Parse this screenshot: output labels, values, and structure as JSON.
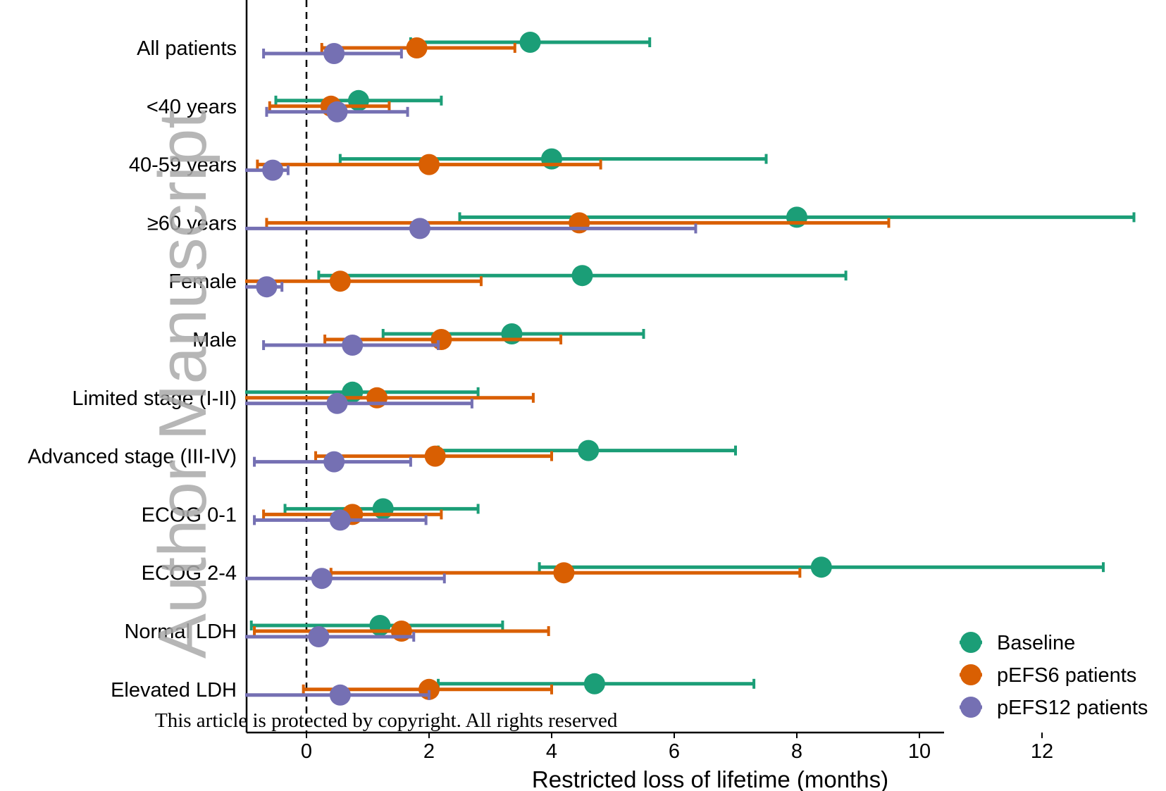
{
  "chart_data": {
    "type": "forest",
    "xlabel": "Restricted loss of lifetime (months)",
    "xlim": [
      -1.0,
      13.8
    ],
    "xticks": [
      0,
      2,
      4,
      6,
      8,
      10,
      12
    ],
    "reference_line_x": 0,
    "categories": [
      "All patients",
      "<40 years",
      "40-59 years",
      "≥60 years",
      "Female",
      "Male",
      "Limited stage (I-II)",
      "Advanced stage (III-IV)",
      "ECOG 0-1",
      "ECOG 2-4",
      "Normal LDH",
      "Elevated LDH"
    ],
    "series": [
      {
        "name": "Baseline",
        "color": "#1b9e77",
        "estimates": [
          3.65,
          0.85,
          4.0,
          8.0,
          4.5,
          3.35,
          0.75,
          4.6,
          1.25,
          8.4,
          1.2,
          4.7
        ],
        "lower": [
          1.7,
          -0.5,
          0.55,
          2.5,
          0.2,
          1.25,
          -1.0,
          2.15,
          -0.35,
          3.8,
          -0.9,
          2.15
        ],
        "upper": [
          5.6,
          2.2,
          7.5,
          13.5,
          8.8,
          5.5,
          2.8,
          7.0,
          2.8,
          13.0,
          3.2,
          7.3
        ]
      },
      {
        "name": "pEFS6 patients",
        "color": "#d95f02",
        "estimates": [
          1.8,
          0.4,
          2.0,
          4.45,
          0.55,
          2.2,
          1.15,
          2.1,
          0.75,
          4.2,
          1.55,
          2.0
        ],
        "lower": [
          0.25,
          -0.6,
          -0.8,
          -0.65,
          -1.0,
          0.3,
          -1.0,
          0.15,
          -0.7,
          0.4,
          -0.85,
          -0.05
        ],
        "upper": [
          3.4,
          1.35,
          4.8,
          9.5,
          2.85,
          4.15,
          3.7,
          4.0,
          2.2,
          8.05,
          3.95,
          4.0
        ]
      },
      {
        "name": "pEFS12 patients",
        "color": "#7570b3",
        "estimates": [
          0.45,
          0.5,
          -0.55,
          1.85,
          -0.65,
          0.75,
          0.5,
          0.45,
          0.55,
          0.25,
          0.2,
          0.55
        ],
        "lower": [
          -0.7,
          -0.65,
          -1.0,
          -1.0,
          -1.0,
          -0.7,
          -1.0,
          -0.85,
          -0.85,
          -1.0,
          -1.0,
          -1.0
        ],
        "upper": [
          1.55,
          1.65,
          -0.3,
          6.35,
          -0.4,
          2.15,
          2.7,
          1.7,
          1.95,
          2.25,
          1.75,
          2.0
        ]
      }
    ],
    "legend_position": "bottom-right"
  },
  "watermark": "Author Manuscript",
  "footer": "This article is protected by copyright. All rights reserved"
}
